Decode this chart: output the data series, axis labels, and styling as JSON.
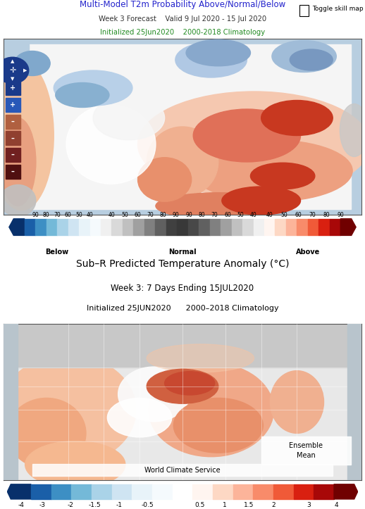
{
  "title1_line1": "Multi-Model T2m Probability Above/Normal/Below",
  "title1_line2": "Week 3 Forecast    Valid 9 Jul 2020 - 15 Jul 2020",
  "title1_line3": "Initialized 25Jun2020    2000-2018 Climatology",
  "toggle_text": "Toggle skill map",
  "title2_line1": "Sub–R Predicted Temperature Anomaly (°C)",
  "title2_line2": "Week 3: 7 Days Ending 15JUL2020",
  "title2_line3": "Initialized 25JUN2020      2000–2018 Climatology",
  "cb1_below_labels": [
    "90",
    "80",
    "70",
    "60",
    "50",
    "40"
  ],
  "cb1_normal_labels": [
    "40",
    "50",
    "60",
    "70",
    "80",
    "90",
    "90",
    "80",
    "70",
    "60",
    "50",
    "40"
  ],
  "cb1_above_labels": [
    "40",
    "50",
    "60",
    "70",
    "80",
    "90"
  ],
  "cb1_section_labels": [
    "Below",
    "Normal",
    "Above"
  ],
  "cb2_labels": [
    "-4",
    "-3",
    "-2",
    "-1.5",
    "-1",
    "-0.5",
    "0.5",
    "1",
    "1.5",
    "2",
    "3",
    "4"
  ],
  "ensemble_mean_text": "Ensemble\nMean",
  "world_climate_text": "World Climate Service",
  "bg_color": "#ffffff",
  "below_colors": [
    "#08306b",
    "#2171b5",
    "#6baed6",
    "#9ecae1",
    "#c6dbef",
    "#deebf7",
    "#f7fbff"
  ],
  "above_colors": [
    "#fff5f0",
    "#fee0d2",
    "#fcbba1",
    "#fc9272",
    "#fb6a4a",
    "#ef3b2c",
    "#cb181d",
    "#99000d"
  ],
  "normal_colors": [
    "#f7f7f7",
    "#d9d9d9",
    "#bdbdbd",
    "#969696",
    "#737373",
    "#525252",
    "#252525"
  ],
  "map1_ocean": "#b8cee0",
  "map1_land_white": "#ffffff",
  "map2_ocean": "#c0c8d0",
  "map2_land_white": "#f0f0f0"
}
